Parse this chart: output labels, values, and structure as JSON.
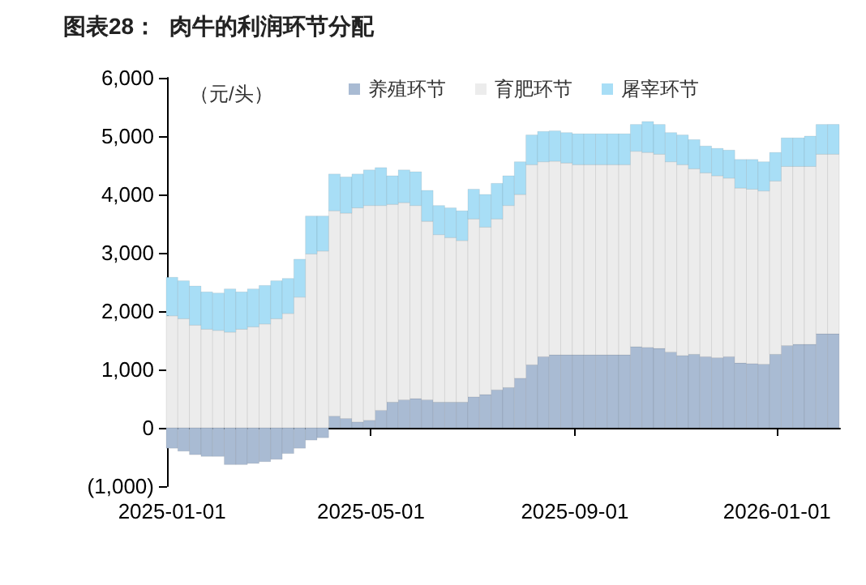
{
  "chart_data": {
    "type": "bar",
    "title": "图表28：  肉牛的利润环节分配",
    "ylabel": "（元/头）",
    "stacked": true,
    "legend": "top",
    "x": [
      "2025-01-01",
      "2025-01-08",
      "2025-01-15",
      "2025-01-22",
      "2025-01-29",
      "2025-02-05",
      "2025-02-12",
      "2025-02-19",
      "2025-02-26",
      "2025-03-05",
      "2025-03-12",
      "2025-03-19",
      "2025-03-26",
      "2025-04-02",
      "2025-04-09",
      "2025-04-16",
      "2025-04-23",
      "2025-04-30",
      "2025-05-07",
      "2025-05-14",
      "2025-05-21",
      "2025-05-28",
      "2025-06-04",
      "2025-06-11",
      "2025-06-18",
      "2025-06-25",
      "2025-07-02",
      "2025-07-09",
      "2025-07-16",
      "2025-07-23",
      "2025-07-30",
      "2025-08-06",
      "2025-08-13",
      "2025-08-20",
      "2025-08-27",
      "2025-09-03",
      "2025-09-10",
      "2025-09-17",
      "2025-09-24",
      "2025-10-01",
      "2025-10-08",
      "2025-10-15",
      "2025-10-22",
      "2025-10-29",
      "2025-11-05",
      "2025-11-12",
      "2025-11-19",
      "2025-11-26",
      "2025-12-03",
      "2025-12-10",
      "2025-12-17",
      "2025-12-24",
      "2025-12-31",
      "2026-01-07",
      "2026-01-14",
      "2026-01-21",
      "2026-01-28",
      "2026-02-04"
    ],
    "xlim": [
      "2024-12-29",
      "2026-02-08"
    ],
    "xticks": [
      "2025-01-01",
      "2025-05-01",
      "2025-09-01",
      "2026-01-01"
    ],
    "ylim": [
      -1000,
      6000
    ],
    "yticks": [
      {
        "value": -1000,
        "label": "(1,000)"
      },
      0,
      {
        "value": 1000,
        "label": "1,000"
      },
      {
        "value": 2000,
        "label": "2,000"
      },
      {
        "value": 3000,
        "label": "3,000"
      },
      {
        "value": 4000,
        "label": "4,000"
      },
      {
        "value": 5000,
        "label": "5,000"
      },
      {
        "value": 6000,
        "label": "6,000"
      }
    ],
    "series": [
      {
        "name": "养殖环节",
        "color": "#a9bbd3",
        "values": [
          -350,
          -400,
          -460,
          -490,
          -490,
          -630,
          -630,
          -610,
          -580,
          -540,
          -440,
          -350,
          -210,
          -170,
          200,
          160,
          100,
          130,
          300,
          440,
          480,
          500,
          480,
          440,
          440,
          440,
          530,
          570,
          650,
          690,
          850,
          1080,
          1220,
          1250,
          1250,
          1250,
          1250,
          1250,
          1250,
          1250,
          1390,
          1380,
          1360,
          1300,
          1240,
          1260,
          1220,
          1200,
          1220,
          1110,
          1100,
          1090,
          1260,
          1410,
          1430,
          1430,
          1610,
          1610
        ]
      },
      {
        "name": "育肥环节",
        "color": "#ececec",
        "values": [
          1920,
          1870,
          1760,
          1690,
          1670,
          1640,
          1690,
          1730,
          1780,
          1870,
          1960,
          2240,
          2980,
          3030,
          3520,
          3520,
          3670,
          3680,
          3510,
          3390,
          3380,
          3310,
          3060,
          2870,
          2820,
          2770,
          3050,
          2870,
          2930,
          3120,
          3150,
          3430,
          3340,
          3320,
          3290,
          3260,
          3260,
          3260,
          3260,
          3260,
          3350,
          3340,
          3330,
          3260,
          3270,
          3180,
          3150,
          3120,
          3060,
          3000,
          2990,
          2970,
          2970,
          3070,
          3050,
          3050,
          3080,
          3080
        ]
      },
      {
        "name": "屠宰环节",
        "color": "#a8def6",
        "values": [
          660,
          650,
          670,
          640,
          640,
          740,
          640,
          650,
          660,
          650,
          600,
          650,
          650,
          600,
          630,
          620,
          580,
          610,
          650,
          490,
          560,
          580,
          530,
          500,
          510,
          510,
          510,
          560,
          610,
          510,
          560,
          510,
          520,
          520,
          520,
          530,
          530,
          530,
          530,
          530,
          460,
          530,
          510,
          500,
          510,
          500,
          460,
          470,
          480,
          490,
          510,
          500,
          490,
          490,
          490,
          520,
          510,
          510
        ]
      }
    ]
  }
}
